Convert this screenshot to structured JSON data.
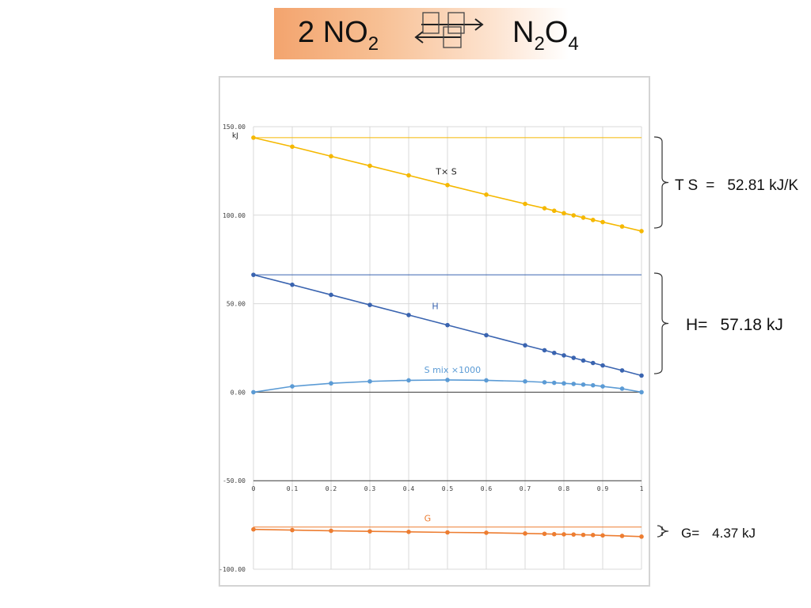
{
  "equation": {
    "left_coef": "2",
    "left_species": "NO",
    "left_sub": "2",
    "right_n": "N",
    "right_n_sub": "2",
    "right_o": "O",
    "right_o_sub": "4"
  },
  "annotations": {
    "ts": {
      "label": "T  S",
      "eq": "=",
      "value": "52.81 kJ/K"
    },
    "h": {
      "label": "H",
      "eq": "=",
      "value": "57.18 kJ"
    },
    "g": {
      "label": "G",
      "eq": "=",
      "value": "4.37 kJ"
    }
  },
  "colors": {
    "ts": "#f5b800",
    "h": "#3a64b0",
    "smix": "#5b9bd5",
    "g": "#ed7d31",
    "grid": "#d9d9d9",
    "axis_text": "#404040"
  },
  "chart_data": {
    "type": "line",
    "xlim": [
      0,
      1
    ],
    "ylim": [
      -100,
      150
    ],
    "grid": true,
    "y_unit_label": "kJ",
    "x_ticks": [
      "0",
      "0.1",
      "0.2",
      "0.3",
      "0.4",
      "0.5",
      "0.6",
      "0.7",
      "0.8",
      "0.9",
      "1"
    ],
    "y_ticks": [
      {
        "value": 150,
        "label": "150.00"
      },
      {
        "value": 100,
        "label": "100.00"
      },
      {
        "value": 50,
        "label": "50.00"
      },
      {
        "value": 0,
        "label": "0.00"
      },
      {
        "value": -50,
        "label": "-50.00"
      },
      {
        "value": -100,
        "label": "-100.00"
      }
    ],
    "x": [
      0,
      0.1,
      0.2,
      0.3,
      0.4,
      0.5,
      0.6,
      0.7,
      0.75,
      0.775,
      0.8,
      0.825,
      0.85,
      0.875,
      0.9,
      0.95,
      1.0
    ],
    "series": [
      {
        "key": "ts",
        "name": "T× S",
        "label_at": [
          0.47,
          123
        ],
        "values": [
          143.8,
          138.7,
          133.3,
          127.9,
          122.5,
          117.0,
          111.6,
          106.4,
          103.9,
          102.5,
          101.1,
          99.9,
          98.6,
          97.3,
          96.1,
          93.6,
          91.0
        ],
        "reference": 143.8
      },
      {
        "key": "h",
        "name": "H",
        "label_at": [
          0.46,
          47
        ],
        "values": [
          66.3,
          60.7,
          55.0,
          49.3,
          43.6,
          37.9,
          32.2,
          26.5,
          23.7,
          22.2,
          20.8,
          19.4,
          17.9,
          16.5,
          15.1,
          12.3,
          9.4
        ],
        "reference": 66.3
      },
      {
        "key": "smix",
        "name": "S mix ×1000",
        "label_at": [
          0.44,
          11
        ],
        "values": [
          0.0,
          3.3,
          5.0,
          6.1,
          6.7,
          6.9,
          6.7,
          6.1,
          5.6,
          5.3,
          5.0,
          4.7,
          4.3,
          3.9,
          3.3,
          2.0,
          0.0
        ]
      },
      {
        "key": "g",
        "name": "G",
        "label_at": [
          0.44,
          -73
        ],
        "values": [
          -77.5,
          -77.9,
          -78.3,
          -78.6,
          -78.9,
          -79.2,
          -79.4,
          -79.8,
          -80.0,
          -80.2,
          -80.3,
          -80.4,
          -80.6,
          -80.7,
          -80.9,
          -81.2,
          -81.6
        ],
        "reference": -76.2
      }
    ]
  }
}
